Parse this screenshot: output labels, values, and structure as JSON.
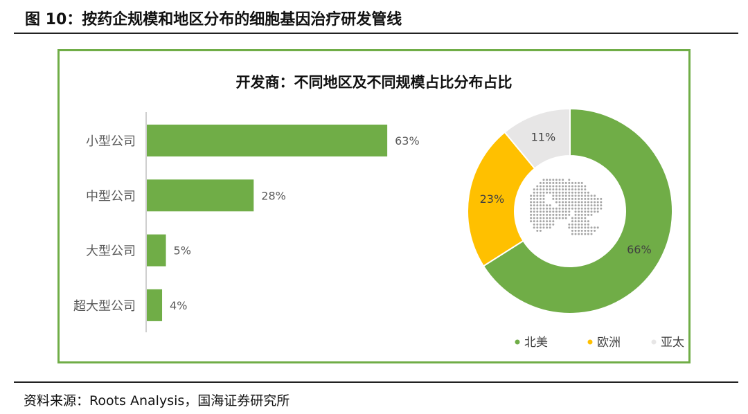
{
  "figure_title": "图 10：按药企规模和地区分布的细胞基因治疗研发管线",
  "source": "资料来源：Roots Analysis，国海证券研究所",
  "colors": {
    "green": "#70ad47",
    "yellow": "#ffc000",
    "gray": "#e7e6e6",
    "frame": "#70ad47"
  },
  "chart_data": [
    {
      "type": "bar",
      "orientation": "horizontal",
      "title": "开发商：不同地区及不同规模占比分布占比",
      "categories": [
        "小型公司",
        "中型公司",
        "大型公司",
        "超大型公司"
      ],
      "values": [
        63,
        28,
        5,
        4
      ],
      "labels": [
        "63%",
        "28%",
        "5%",
        "4%"
      ],
      "unit": "%",
      "xlim": [
        0,
        100
      ],
      "color": "#70ad47"
    },
    {
      "type": "pie",
      "variant": "donut",
      "labels": [
        "北美",
        "欧洲",
        "亚太"
      ],
      "values": [
        66,
        23,
        11
      ],
      "value_labels": [
        "66%",
        "23%",
        "11%"
      ],
      "colors": [
        "#70ad47",
        "#ffc000",
        "#e7e6e6"
      ],
      "legend": "bottom-right",
      "center_icon": "dotted-globe-icon"
    }
  ]
}
